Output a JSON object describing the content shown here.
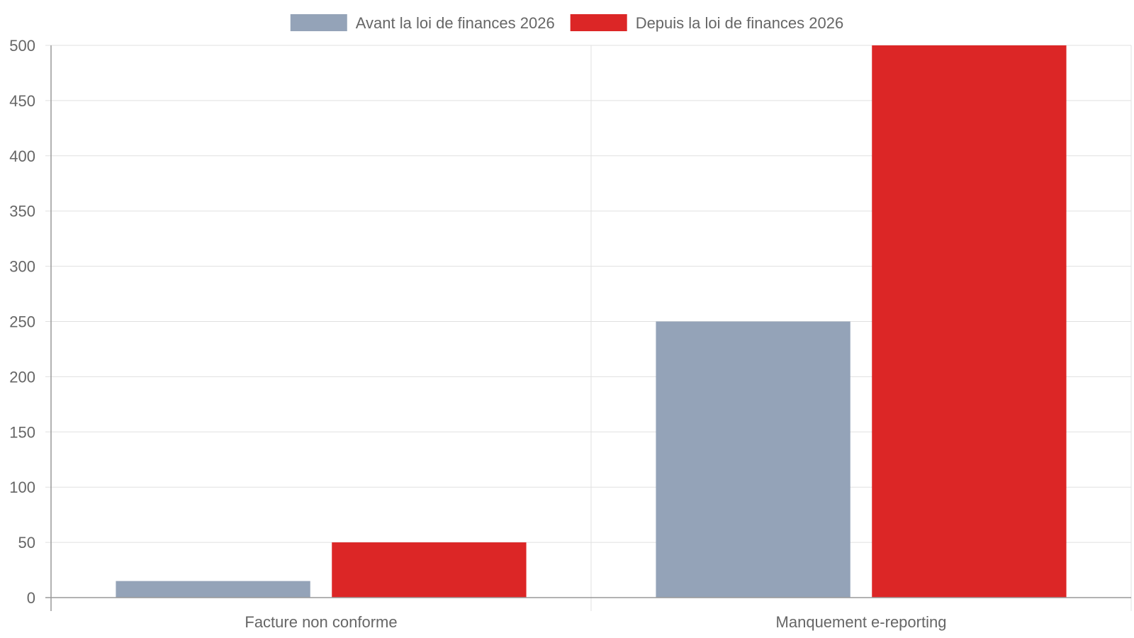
{
  "chart_data": {
    "type": "bar",
    "title": "",
    "xlabel": "",
    "ylabel": "",
    "categories": [
      "Facture non conforme",
      "Manquement e-reporting"
    ],
    "series": [
      {
        "name": "Avant la loi de finances 2026",
        "color": "#94a3b8",
        "values": [
          15,
          250
        ]
      },
      {
        "name": "Depuis la loi de finances 2026",
        "color": "#dc2626",
        "values": [
          50,
          500
        ]
      }
    ],
    "ylim": [
      0,
      500
    ],
    "yticks": [
      0,
      50,
      100,
      150,
      200,
      250,
      300,
      350,
      400,
      450,
      500
    ],
    "grid": true,
    "legend_position": "top-center"
  }
}
